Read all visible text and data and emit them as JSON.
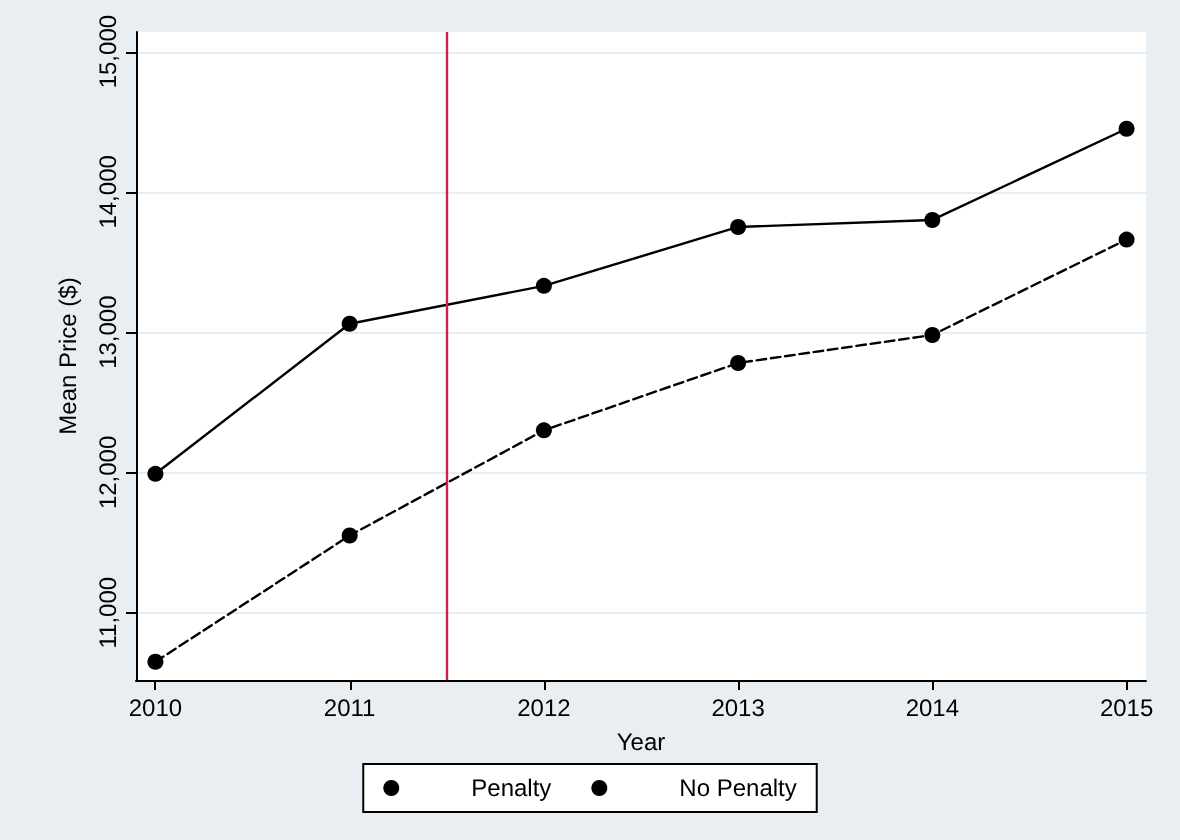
{
  "chart_data": {
    "type": "line",
    "xlabel": "Year",
    "ylabel": "Mean Price ($)",
    "x": [
      2010,
      2011,
      2012,
      2013,
      2014,
      2015
    ],
    "series": [
      {
        "name": "Penalty",
        "color": "#000000",
        "line_style": "dashed",
        "values": [
          10650,
          11550,
          12300,
          12780,
          12980,
          13660
        ]
      },
      {
        "name": "No Penalty",
        "color": "#000000",
        "line_style": "solid",
        "values": [
          11990,
          13060,
          13330,
          13750,
          13800,
          14450
        ]
      }
    ],
    "xlim": [
      2009.9,
      2015.1
    ],
    "xticks": [
      2010,
      2011,
      2012,
      2013,
      2014,
      2015
    ],
    "ylim": [
      10520,
      15140
    ],
    "yticks": [
      {
        "value": 11000,
        "label": "11,000"
      },
      {
        "value": 12000,
        "label": "12,000"
      },
      {
        "value": 13000,
        "label": "13,000"
      },
      {
        "value": 14000,
        "label": "14,000"
      },
      {
        "value": 15000,
        "label": "15,000"
      }
    ],
    "ref_lines": [
      {
        "axis": "x",
        "value": 2011.5,
        "color": "#d0204a"
      }
    ],
    "grid": "y",
    "legend": "bottom",
    "marker": "circle"
  }
}
